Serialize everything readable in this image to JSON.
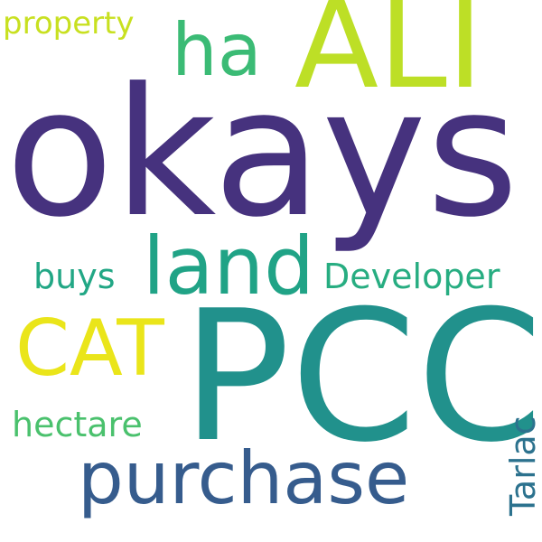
{
  "words": [
    {
      "text": "okays",
      "color": "#46327e"
    },
    {
      "text": "PCC",
      "color": "#21918c"
    },
    {
      "text": "ALI",
      "color": "#bddf26"
    },
    {
      "text": "land",
      "color": "#20a386"
    },
    {
      "text": "purchase",
      "color": "#365c8d"
    },
    {
      "text": "CAT",
      "color": "#eae51a"
    },
    {
      "text": "ha",
      "color": "#3bbb75"
    },
    {
      "text": "Developer",
      "color": "#27ad81"
    },
    {
      "text": "buys",
      "color": "#22a785"
    },
    {
      "text": "hectare",
      "color": "#4ac16d"
    },
    {
      "text": "property",
      "color": "#c8e020"
    },
    {
      "text": "Tarlac",
      "color": "#2c728e"
    }
  ]
}
